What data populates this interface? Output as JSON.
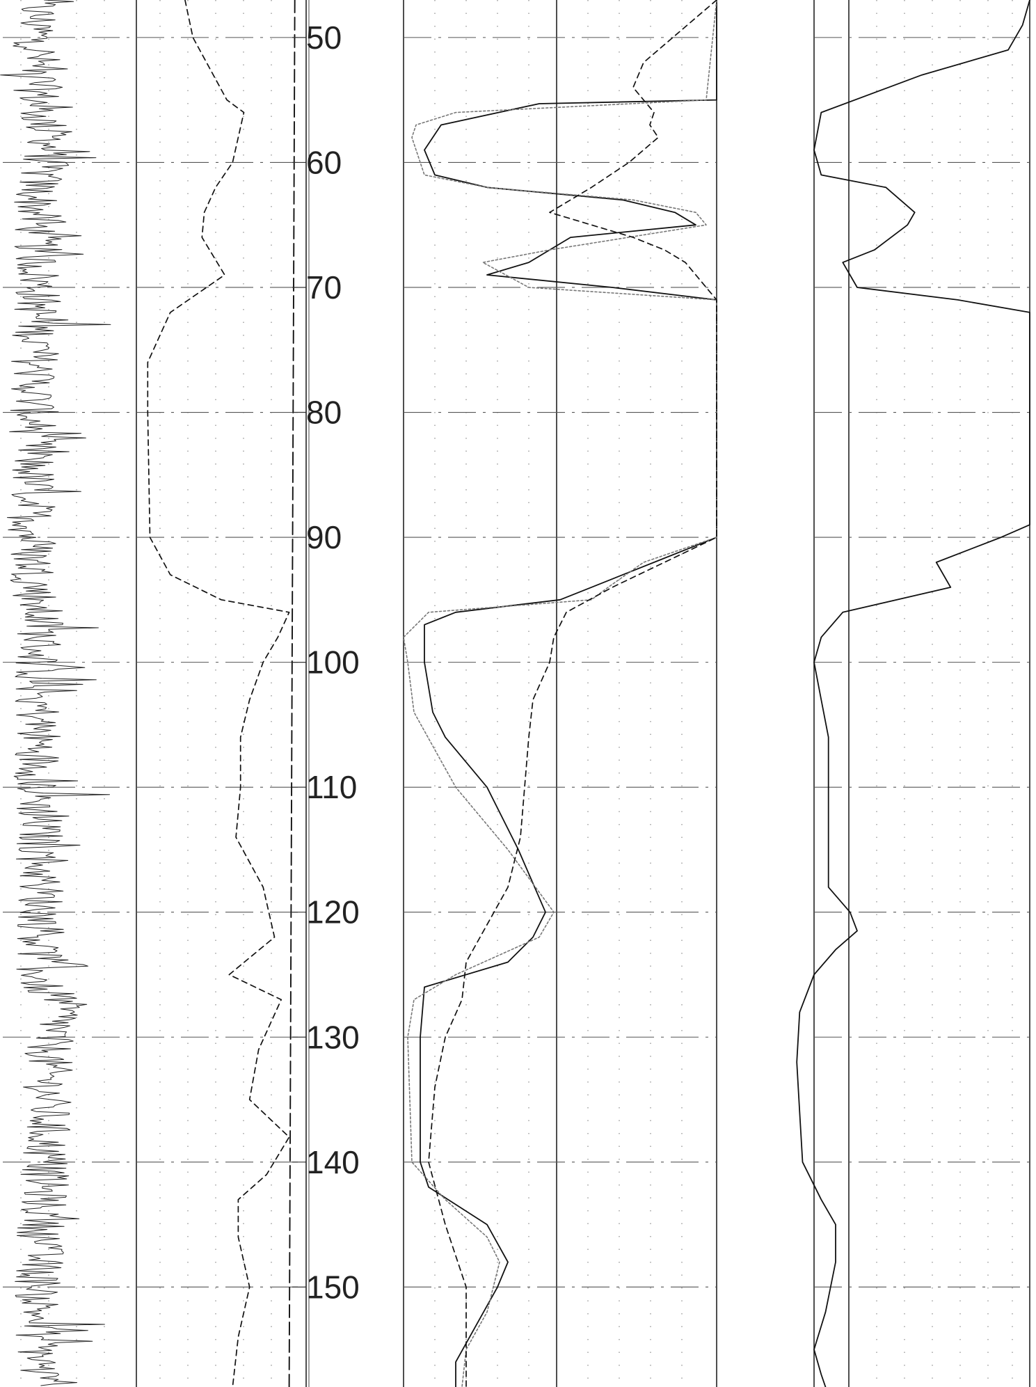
{
  "chart_data": {
    "type": "line",
    "title": "",
    "xlabel": "",
    "ylabel": "",
    "depth_axis": {
      "range": [
        47,
        158
      ],
      "major_step": 10,
      "minor_step": 2,
      "tick_labels": [
        "50",
        "60",
        "70",
        "80",
        "90",
        "100",
        "110",
        "120",
        "130",
        "140",
        "150"
      ]
    },
    "tracks": [
      {
        "name": "",
        "range": [
          0,
          150
        ],
        "series": [
          {
            "name": "",
            "style": "noisy-solid",
            "points": [
              [
                47,
                38
              ],
              [
                56,
                40
              ],
              [
                58,
                55
              ],
              [
                60,
                48
              ],
              [
                62,
                38
              ],
              [
                70,
                40
              ],
              [
                80,
                35
              ],
              [
                90,
                32
              ],
              [
                95,
                38
              ],
              [
                97,
                44
              ],
              [
                100,
                40
              ],
              [
                110,
                40
              ],
              [
                120,
                44
              ],
              [
                126,
                42
              ],
              [
                127,
                68
              ],
              [
                129,
                62
              ],
              [
                130,
                52
              ],
              [
                135,
                50
              ],
              [
                140,
                48
              ],
              [
                145,
                44
              ],
              [
                150,
                40
              ],
              [
                155,
                42
              ],
              [
                158,
                42
              ]
            ]
          }
        ]
      },
      {
        "name": "",
        "range": [
          0,
          150
        ],
        "series": [
          {
            "name": "",
            "style": "dashed",
            "points": [
              [
                47,
                43
              ],
              [
                50,
                50
              ],
              [
                55,
                80
              ],
              [
                56,
                95
              ],
              [
                58,
                90
              ],
              [
                60,
                85
              ],
              [
                62,
                70
              ],
              [
                64,
                60
              ],
              [
                66,
                58
              ],
              [
                69,
                78
              ],
              [
                72,
                30
              ],
              [
                76,
                10
              ],
              [
                80,
                10
              ],
              [
                90,
                12
              ],
              [
                93,
                30
              ],
              [
                95,
                75
              ],
              [
                96,
                135
              ],
              [
                98,
                125
              ],
              [
                100,
                112
              ],
              [
                103,
                100
              ],
              [
                106,
                92
              ],
              [
                110,
                92
              ],
              [
                114,
                88
              ],
              [
                118,
                112
              ],
              [
                122,
                122
              ],
              [
                125,
                82
              ],
              [
                127,
                128
              ],
              [
                129,
                118
              ],
              [
                131,
                108
              ],
              [
                135,
                100
              ],
              [
                138,
                135
              ],
              [
                141,
                115
              ],
              [
                143,
                90
              ],
              [
                146,
                90
              ],
              [
                150,
                100
              ],
              [
                154,
                90
              ],
              [
                158,
                85
              ]
            ]
          },
          {
            "name": "",
            "style": "long-dashed",
            "points": [
              [
                47,
                140
              ],
              [
                158,
                135
              ]
            ]
          }
        ]
      },
      {
        "name": "",
        "range": [
          0,
          150
        ],
        "series": [
          {
            "name": "",
            "style": "solid",
            "points": [
              [
                47,
                150
              ],
              [
                55,
                150
              ],
              [
                55.3,
                65
              ],
              [
                57,
                18
              ],
              [
                59,
                10
              ],
              [
                61,
                15
              ],
              [
                62,
                40
              ],
              [
                63,
                105
              ],
              [
                64,
                130
              ],
              [
                65,
                140
              ],
              [
                66,
                80
              ],
              [
                67,
                70
              ],
              [
                68,
                60
              ],
              [
                69,
                40
              ],
              [
                70,
                100
              ],
              [
                71,
                150
              ],
              [
                90,
                150
              ],
              [
                92,
                120
              ],
              [
                94,
                90
              ],
              [
                95,
                75
              ],
              [
                96,
                25
              ],
              [
                97,
                10
              ],
              [
                100,
                10
              ],
              [
                104,
                14
              ],
              [
                106,
                20
              ],
              [
                110,
                40
              ],
              [
                115,
                55
              ],
              [
                120,
                68
              ],
              [
                122,
                62
              ],
              [
                124,
                50
              ],
              [
                126,
                10
              ],
              [
                130,
                8
              ],
              [
                140,
                8
              ],
              [
                142,
                12
              ],
              [
                145,
                40
              ],
              [
                148,
                50
              ],
              [
                150,
                45
              ],
              [
                153,
                35
              ],
              [
                156,
                25
              ],
              [
                158,
                25
              ]
            ]
          },
          {
            "name": "",
            "style": "dotted",
            "points": [
              [
                47,
                150
              ],
              [
                55,
                145
              ],
              [
                56,
                25
              ],
              [
                57,
                6
              ],
              [
                58,
                4
              ],
              [
                61,
                10
              ],
              [
                62,
                40
              ],
              [
                63,
                110
              ],
              [
                64,
                140
              ],
              [
                65,
                145
              ],
              [
                67,
                70
              ],
              [
                68,
                38
              ],
              [
                70,
                60
              ],
              [
                71,
                150
              ],
              [
                90,
                150
              ],
              [
                92,
                115
              ],
              [
                94,
                98
              ],
              [
                95,
                90
              ],
              [
                96,
                12
              ],
              [
                98,
                0
              ],
              [
                100,
                2
              ],
              [
                104,
                5
              ],
              [
                110,
                25
              ],
              [
                115,
                50
              ],
              [
                120,
                72
              ],
              [
                122,
                65
              ],
              [
                125,
                25
              ],
              [
                127,
                5
              ],
              [
                130,
                2
              ],
              [
                140,
                4
              ],
              [
                143,
                20
              ],
              [
                146,
                40
              ],
              [
                148,
                46
              ],
              [
                152,
                40
              ],
              [
                155,
                30
              ],
              [
                158,
                28
              ]
            ]
          },
          {
            "name": "",
            "style": "dashed",
            "points": [
              [
                47,
                150
              ],
              [
                52,
                115
              ],
              [
                54,
                110
              ],
              [
                56,
                120
              ],
              [
                57,
                118
              ],
              [
                58,
                122
              ],
              [
                60,
                108
              ],
              [
                62,
                90
              ],
              [
                64,
                70
              ],
              [
                65,
                90
              ],
              [
                66,
                110
              ],
              [
                67,
                125
              ],
              [
                68,
                135
              ],
              [
                69,
                140
              ],
              [
                70,
                145
              ],
              [
                71,
                150
              ],
              [
                90,
                150
              ],
              [
                92,
                125
              ],
              [
                94,
                100
              ],
              [
                96,
                78
              ],
              [
                98,
                72
              ],
              [
                100,
                70
              ],
              [
                103,
                62
              ],
              [
                106,
                60
              ],
              [
                110,
                58
              ],
              [
                114,
                56
              ],
              [
                118,
                50
              ],
              [
                121,
                40
              ],
              [
                124,
                30
              ],
              [
                127,
                28
              ],
              [
                130,
                20
              ],
              [
                134,
                15
              ],
              [
                140,
                12
              ],
              [
                145,
                20
              ],
              [
                150,
                30
              ],
              [
                153,
                30
              ],
              [
                158,
                30
              ]
            ]
          }
        ]
      },
      {
        "name": "",
        "range": [
          0,
          150
        ],
        "series": [
          {
            "name": "",
            "style": "solid",
            "points": [
              [
                47,
                150
              ],
              [
                49,
                145
              ],
              [
                51,
                135
              ],
              [
                53,
                75
              ],
              [
                56,
                5
              ],
              [
                59,
                0
              ],
              [
                61,
                5
              ],
              [
                62,
                50
              ],
              [
                64,
                70
              ],
              [
                65,
                65
              ],
              [
                67,
                42
              ],
              [
                68,
                20
              ],
              [
                70,
                30
              ],
              [
                71,
                100
              ],
              [
                72,
                150
              ],
              [
                89,
                150
              ],
              [
                90,
                130
              ],
              [
                92,
                85
              ],
              [
                94,
                95
              ],
              [
                96,
                20
              ],
              [
                98,
                5
              ],
              [
                100,
                0
              ],
              [
                103,
                5
              ],
              [
                106,
                10
              ],
              [
                110,
                10
              ],
              [
                118,
                10
              ],
              [
                120,
                25
              ],
              [
                121.5,
                30
              ],
              [
                123,
                15
              ],
              [
                125,
                0
              ],
              [
                128,
                -10
              ],
              [
                132,
                -12
              ],
              [
                136,
                -10
              ],
              [
                140,
                -8
              ],
              [
                143,
                5
              ],
              [
                145,
                15
              ],
              [
                148,
                15
              ],
              [
                152,
                8
              ],
              [
                155,
                0
              ],
              [
                157,
                5
              ],
              [
                158,
                8
              ]
            ]
          }
        ]
      }
    ]
  }
}
